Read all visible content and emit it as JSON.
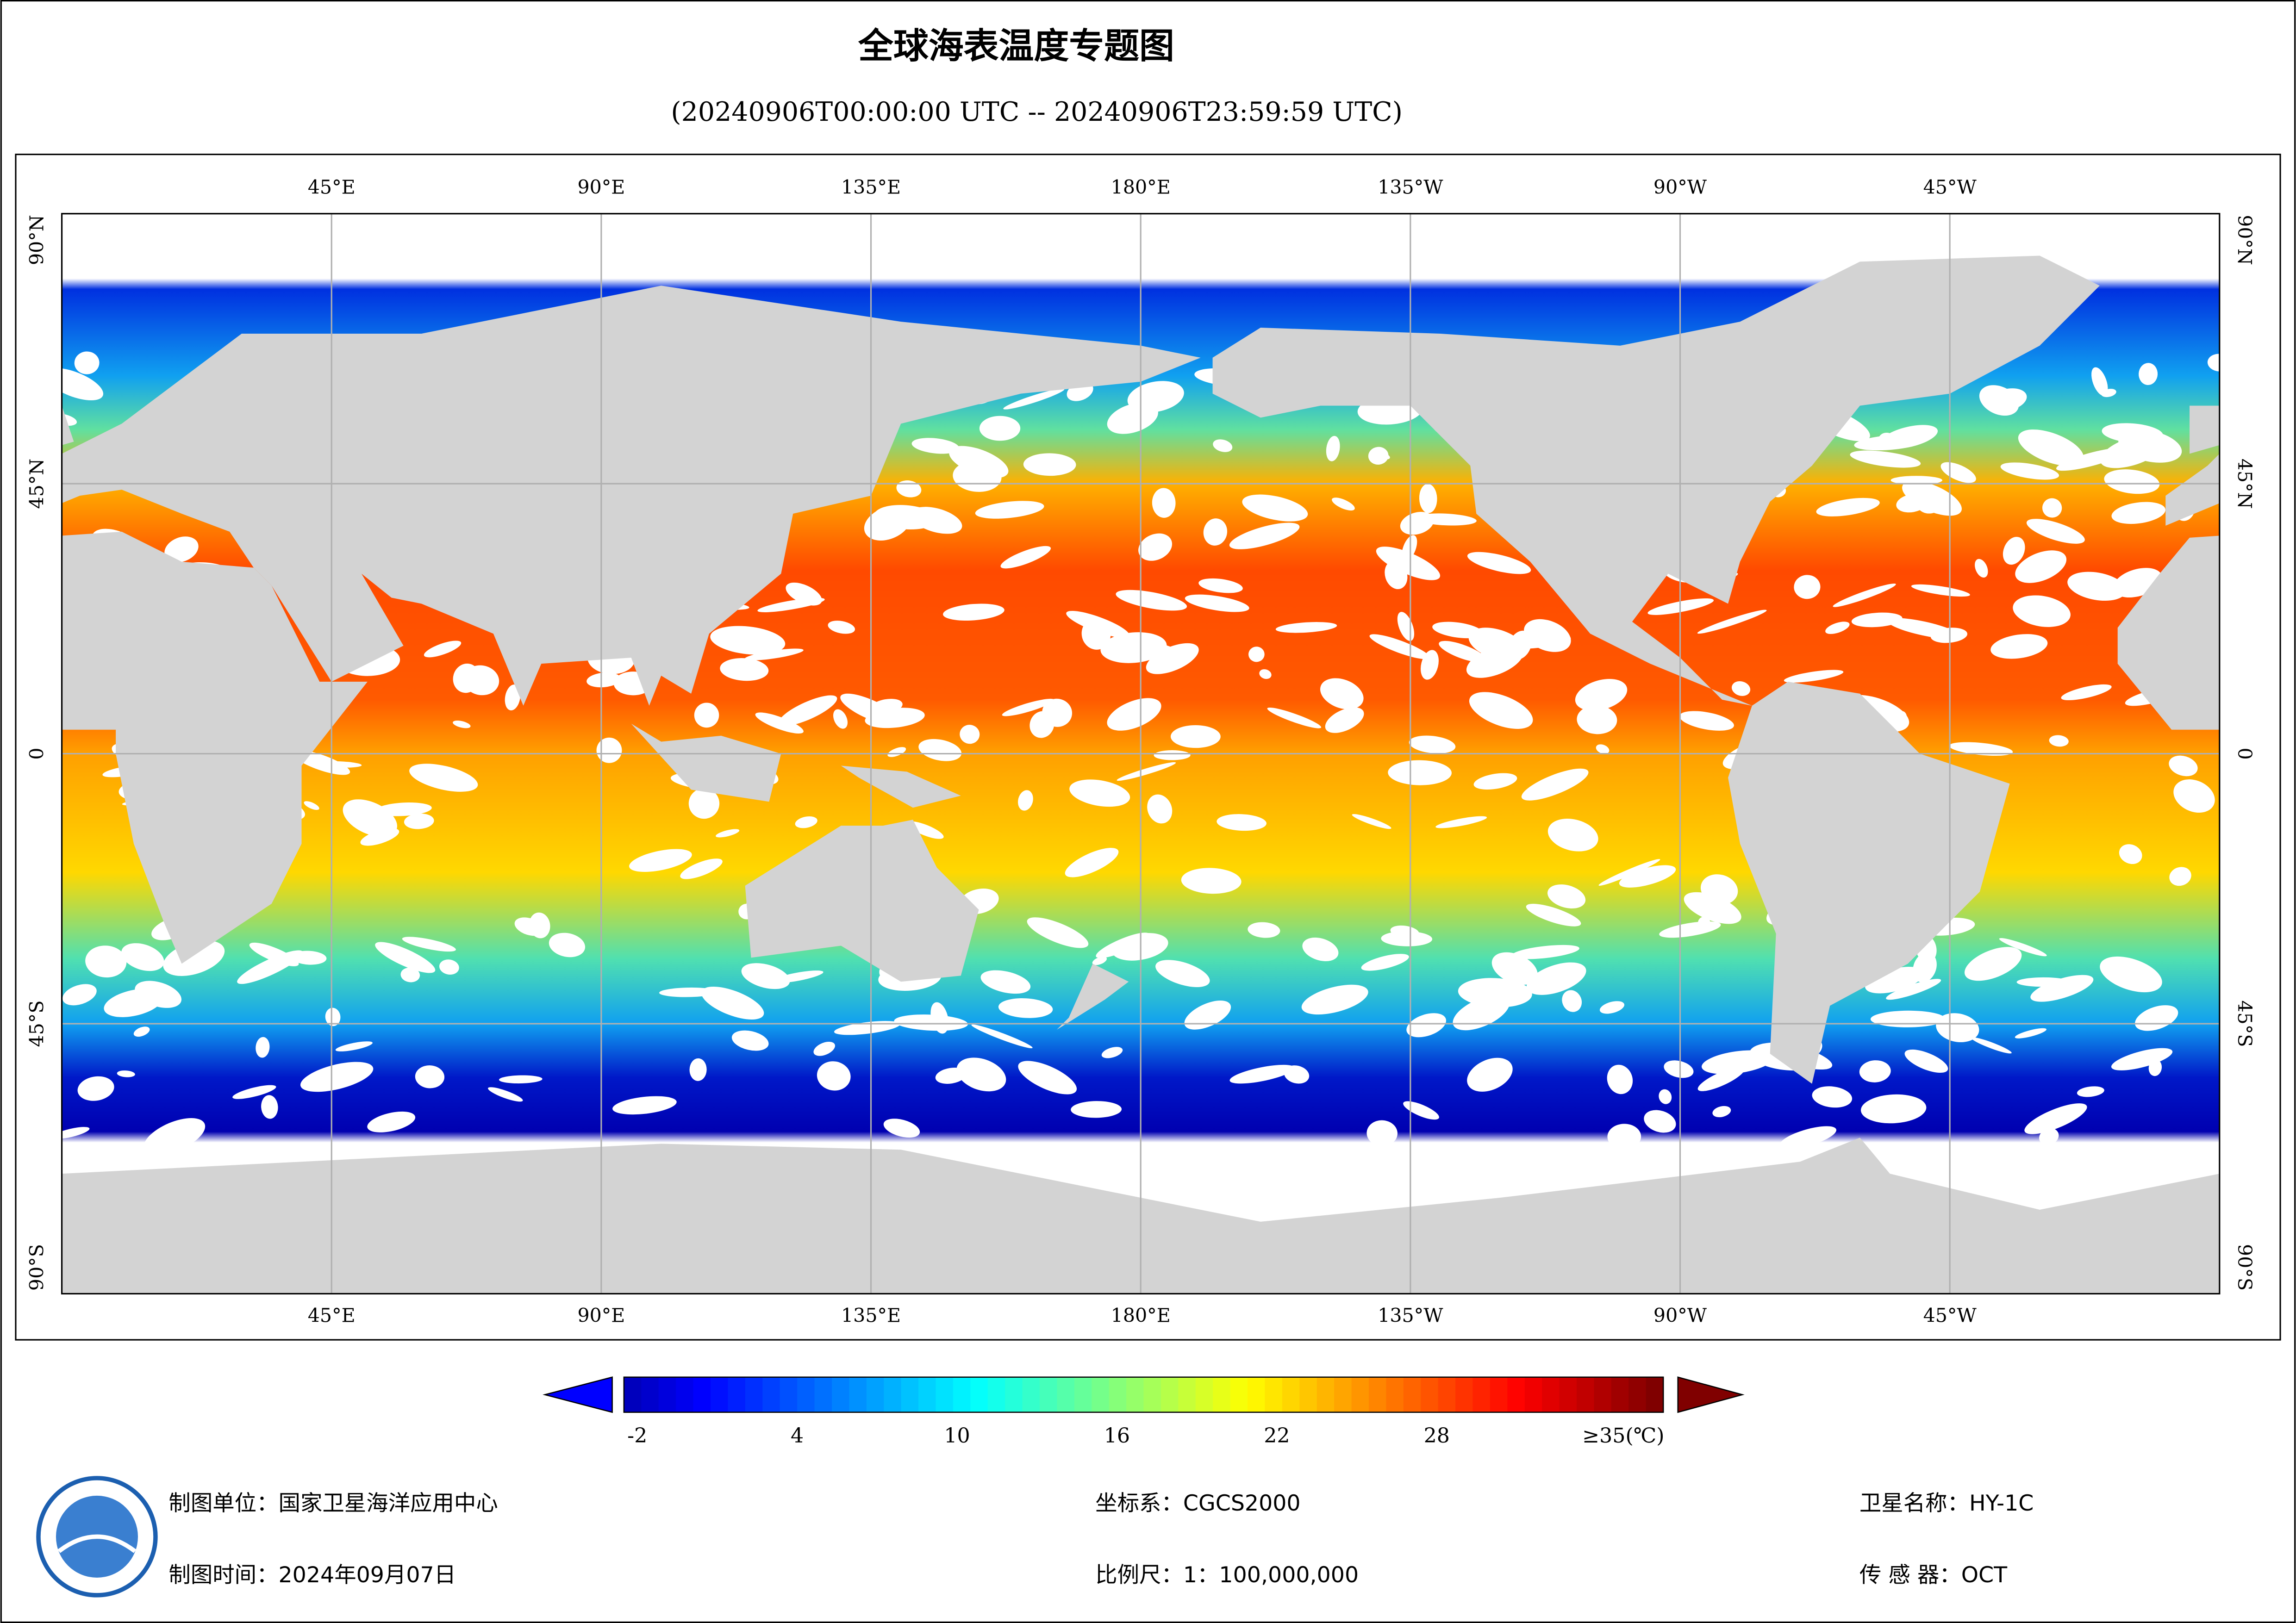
{
  "header": {
    "title": "全球海表温度专题图",
    "subtitle": "(20240906T00:00:00 UTC -- 20240906T23:59:59 UTC)"
  },
  "grid": {
    "lon": [
      {
        "value": 45,
        "label": "45°E"
      },
      {
        "value": 90,
        "label": "90°E"
      },
      {
        "value": 135,
        "label": "135°E"
      },
      {
        "value": 180,
        "label": "180°E"
      },
      {
        "value": 225,
        "label": "135°W"
      },
      {
        "value": 270,
        "label": "90°W"
      },
      {
        "value": 315,
        "label": "45°W"
      }
    ],
    "lat": [
      {
        "value": 90,
        "label": "90°N"
      },
      {
        "value": 45,
        "label": "45°N"
      },
      0,
      {
        "value": -45,
        "label": "45°S"
      },
      {
        "value": -90,
        "label": "90°S"
      }
    ]
  },
  "colorbar": {
    "range": [
      -2.5,
      36.5
    ],
    "ticks": [
      -2,
      4,
      10,
      16,
      22,
      28,
      {
        "value": 35,
        "label": "≥35(℃)"
      }
    ]
  },
  "footer": {
    "unit": "制图单位：国家卫星海洋应用中心",
    "time": "制图时间：2024年09月07日",
    "crs": "坐标系：CGCS2000",
    "scale": "比例尺：1：100,000,000",
    "satellite": "卫星名称：HY-1C",
    "sensor": "传 感 器：OCT"
  }
}
